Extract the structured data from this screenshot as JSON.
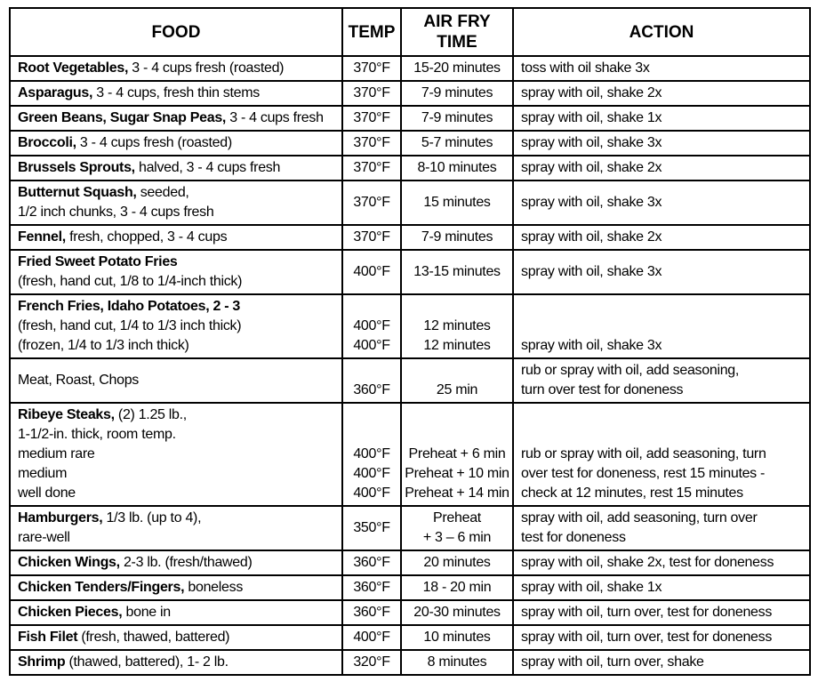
{
  "layout_colors": {
    "border": "#000000",
    "background": "#ffffff",
    "text": "#000000"
  },
  "table": {
    "headers": [
      "FOOD",
      "TEMP",
      "AIR FRY TIME",
      "ACTION"
    ],
    "rows": [
      {
        "food": {
          "lines": [
            [
              {
                "t": "Root Vegetables,",
                "b": true
              },
              {
                "t": " 3 - 4 cups fresh (roasted)"
              }
            ]
          ]
        },
        "temp": {
          "lines": [
            [
              {
                "t": "370°F"
              }
            ]
          ]
        },
        "time": {
          "lines": [
            [
              {
                "t": "15-20 minutes"
              }
            ]
          ]
        },
        "action": {
          "lines": [
            [
              {
                "t": "toss with oil shake 3x"
              }
            ]
          ]
        }
      },
      {
        "food": {
          "lines": [
            [
              {
                "t": "Asparagus,",
                "b": true
              },
              {
                "t": " 3 - 4 cups, fresh thin stems"
              }
            ]
          ]
        },
        "temp": {
          "lines": [
            [
              {
                "t": "370°F"
              }
            ]
          ]
        },
        "time": {
          "lines": [
            [
              {
                "t": "7-9 minutes"
              }
            ]
          ]
        },
        "action": {
          "lines": [
            [
              {
                "t": "spray with oil, shake 2x"
              }
            ]
          ]
        }
      },
      {
        "food": {
          "lines": [
            [
              {
                "t": "Green Beans, Sugar Snap Peas,",
                "b": true
              },
              {
                "t": " 3 - 4 cups fresh"
              }
            ]
          ]
        },
        "temp": {
          "lines": [
            [
              {
                "t": "370°F"
              }
            ]
          ]
        },
        "time": {
          "lines": [
            [
              {
                "t": "7-9 minutes"
              }
            ]
          ]
        },
        "action": {
          "lines": [
            [
              {
                "t": "spray with oil, shake 1x"
              }
            ]
          ]
        }
      },
      {
        "food": {
          "lines": [
            [
              {
                "t": "Broccoli,",
                "b": true
              },
              {
                "t": " 3 - 4 cups fresh (roasted)"
              }
            ]
          ]
        },
        "temp": {
          "lines": [
            [
              {
                "t": "370°F"
              }
            ]
          ]
        },
        "time": {
          "lines": [
            [
              {
                "t": "5-7 minutes"
              }
            ]
          ]
        },
        "action": {
          "lines": [
            [
              {
                "t": "spray with oil, shake 3x"
              }
            ]
          ]
        }
      },
      {
        "food": {
          "lines": [
            [
              {
                "t": "Brussels Sprouts,",
                "b": true
              },
              {
                "t": " halved, 3 - 4 cups fresh"
              }
            ]
          ]
        },
        "temp": {
          "lines": [
            [
              {
                "t": "370°F"
              }
            ]
          ]
        },
        "time": {
          "lines": [
            [
              {
                "t": "8-10 minutes"
              }
            ]
          ]
        },
        "action": {
          "lines": [
            [
              {
                "t": "spray with oil, shake 2x"
              }
            ]
          ]
        }
      },
      {
        "food": {
          "lines": [
            [
              {
                "t": "Butternut Squash,",
                "b": true
              },
              {
                "t": " seeded,"
              }
            ],
            [
              {
                "t": "1/2 inch chunks, 3 - 4 cups fresh"
              }
            ]
          ]
        },
        "temp": {
          "lines": [
            [
              {
                "t": "370°F"
              }
            ]
          ]
        },
        "time": {
          "lines": [
            [
              {
                "t": "15 minutes"
              }
            ]
          ]
        },
        "action": {
          "lines": [
            [
              {
                "t": "spray with oil, shake 3x"
              }
            ]
          ]
        }
      },
      {
        "food": {
          "lines": [
            [
              {
                "t": "Fennel,",
                "b": true
              },
              {
                "t": " fresh, chopped, 3 - 4 cups"
              }
            ]
          ]
        },
        "temp": {
          "lines": [
            [
              {
                "t": "370°F"
              }
            ]
          ]
        },
        "time": {
          "lines": [
            [
              {
                "t": "7-9 minutes"
              }
            ]
          ]
        },
        "action": {
          "lines": [
            [
              {
                "t": "spray with oil, shake 2x"
              }
            ]
          ]
        }
      },
      {
        "food": {
          "lines": [
            [
              {
                "t": "Fried Sweet Potato Fries",
                "b": true
              }
            ],
            [
              {
                "t": "(fresh, hand cut, 1/8 to 1/4-inch thick)"
              }
            ]
          ]
        },
        "temp": {
          "lines": [
            [
              {
                "t": "400°F"
              }
            ]
          ]
        },
        "time": {
          "lines": [
            [
              {
                "t": "13-15 minutes"
              }
            ]
          ]
        },
        "action": {
          "lines": [
            [
              {
                "t": "spray with oil, shake 3x"
              }
            ]
          ]
        }
      },
      {
        "food": {
          "lines": [
            [
              {
                "t": "French Fries, Idaho Potatoes, 2 - 3",
                "b": true
              }
            ],
            [
              {
                "t": "(fresh, hand cut, 1/4 to 1/3 inch thick)"
              }
            ],
            [
              {
                "t": "(frozen, 1/4 to 1/3 inch thick)"
              }
            ]
          ]
        },
        "temp": {
          "lines": [
            [],
            [
              {
                "t": "400°F"
              }
            ],
            [
              {
                "t": "400°F"
              }
            ]
          ]
        },
        "time": {
          "lines": [
            [],
            [
              {
                "t": "12 minutes"
              }
            ],
            [
              {
                "t": "12 minutes"
              }
            ]
          ]
        },
        "action": {
          "lines": [
            [],
            [],
            [
              {
                "t": "spray with oil, shake 3x"
              }
            ]
          ]
        }
      },
      {
        "food": {
          "lines": [
            [
              {
                "t": "Meat, Roast, Chops"
              }
            ]
          ]
        },
        "temp": {
          "valign": "bottom",
          "lines": [
            [
              {
                "t": "360°F"
              }
            ]
          ]
        },
        "time": {
          "valign": "bottom",
          "lines": [
            [
              {
                "t": "25 min"
              }
            ]
          ]
        },
        "action": {
          "lines": [
            [
              {
                "t": "rub or spray with oil, add seasoning,"
              }
            ],
            [
              {
                "t": "turn over test for doneness"
              }
            ]
          ]
        }
      },
      {
        "food": {
          "lines": [
            [
              {
                "t": "Ribeye Steaks,",
                "b": true
              },
              {
                "t": " (2) 1.25 lb.,"
              }
            ],
            [
              {
                "t": "1-1/2-in. thick, room temp."
              }
            ],
            [
              {
                "t": "medium rare"
              }
            ],
            [
              {
                "t": "medium"
              }
            ],
            [
              {
                "t": "well done"
              }
            ]
          ]
        },
        "temp": {
          "lines": [
            [],
            [],
            [
              {
                "t": "400°F"
              }
            ],
            [
              {
                "t": "400°F"
              }
            ],
            [
              {
                "t": "400°F"
              }
            ]
          ]
        },
        "time": {
          "lines": [
            [],
            [],
            [
              {
                "t": "Preheat + 6 min"
              }
            ],
            [
              {
                "t": "Preheat + 10 min"
              }
            ],
            [
              {
                "t": "Preheat + 14 min"
              }
            ]
          ]
        },
        "action": {
          "lines": [
            [],
            [],
            [
              {
                "t": "rub or spray with oil, add seasoning, turn"
              }
            ],
            [
              {
                "t": "over test for doneness, rest 15 minutes -"
              }
            ],
            [
              {
                "t": "check at 12 minutes, rest 15 minutes"
              }
            ]
          ]
        }
      },
      {
        "food": {
          "lines": [
            [
              {
                "t": "Hamburgers,",
                "b": true
              },
              {
                "t": " 1/3 lb. (up to 4),"
              }
            ],
            [
              {
                "t": "rare-well"
              }
            ]
          ]
        },
        "temp": {
          "lines": [
            [
              {
                "t": "350°F"
              }
            ]
          ]
        },
        "time": {
          "lines": [
            [
              {
                "t": "Preheat"
              }
            ],
            [
              {
                "t": "+ 3 – 6 min"
              }
            ]
          ]
        },
        "action": {
          "lines": [
            [
              {
                "t": "spray with oil, add seasoning, turn over"
              }
            ],
            [
              {
                "t": "test for doneness"
              }
            ]
          ]
        }
      },
      {
        "food": {
          "lines": [
            [
              {
                "t": "Chicken Wings,",
                "b": true
              },
              {
                "t": " 2-3 lb. (fresh/thawed)"
              }
            ]
          ]
        },
        "temp": {
          "lines": [
            [
              {
                "t": "360°F"
              }
            ]
          ]
        },
        "time": {
          "lines": [
            [
              {
                "t": "20 minutes"
              }
            ]
          ]
        },
        "action": {
          "lines": [
            [
              {
                "t": "spray with oil, shake 2x, test for doneness"
              }
            ]
          ]
        }
      },
      {
        "food": {
          "lines": [
            [
              {
                "t": "Chicken Tenders/Fingers,",
                "b": true
              },
              {
                "t": " boneless"
              }
            ]
          ]
        },
        "temp": {
          "lines": [
            [
              {
                "t": "360°F"
              }
            ]
          ]
        },
        "time": {
          "lines": [
            [
              {
                "t": "18 - 20 min"
              }
            ]
          ]
        },
        "action": {
          "lines": [
            [
              {
                "t": "spray with oil, shake 1x"
              }
            ]
          ]
        }
      },
      {
        "food": {
          "lines": [
            [
              {
                "t": "Chicken Pieces,",
                "b": true
              },
              {
                "t": " bone in"
              }
            ]
          ]
        },
        "temp": {
          "lines": [
            [
              {
                "t": "360°F"
              }
            ]
          ]
        },
        "time": {
          "lines": [
            [
              {
                "t": "20-30 minutes"
              }
            ]
          ]
        },
        "action": {
          "lines": [
            [
              {
                "t": "spray with oil, turn over, test for doneness"
              }
            ]
          ]
        }
      },
      {
        "food": {
          "lines": [
            [
              {
                "t": "Fish Filet",
                "b": true
              },
              {
                "t": " (fresh, thawed, battered)"
              }
            ]
          ]
        },
        "temp": {
          "lines": [
            [
              {
                "t": "400°F"
              }
            ]
          ]
        },
        "time": {
          "lines": [
            [
              {
                "t": "10 minutes"
              }
            ]
          ]
        },
        "action": {
          "lines": [
            [
              {
                "t": "spray with oil, turn over, test for doneness"
              }
            ]
          ]
        }
      },
      {
        "food": {
          "lines": [
            [
              {
                "t": "Shrimp",
                "b": true
              },
              {
                "t": " (thawed, battered), 1- 2 lb."
              }
            ]
          ]
        },
        "temp": {
          "lines": [
            [
              {
                "t": "320°F"
              }
            ]
          ]
        },
        "time": {
          "lines": [
            [
              {
                "t": "8 minutes"
              }
            ]
          ]
        },
        "action": {
          "lines": [
            [
              {
                "t": "spray with oil, turn over, shake"
              }
            ]
          ]
        }
      }
    ]
  }
}
